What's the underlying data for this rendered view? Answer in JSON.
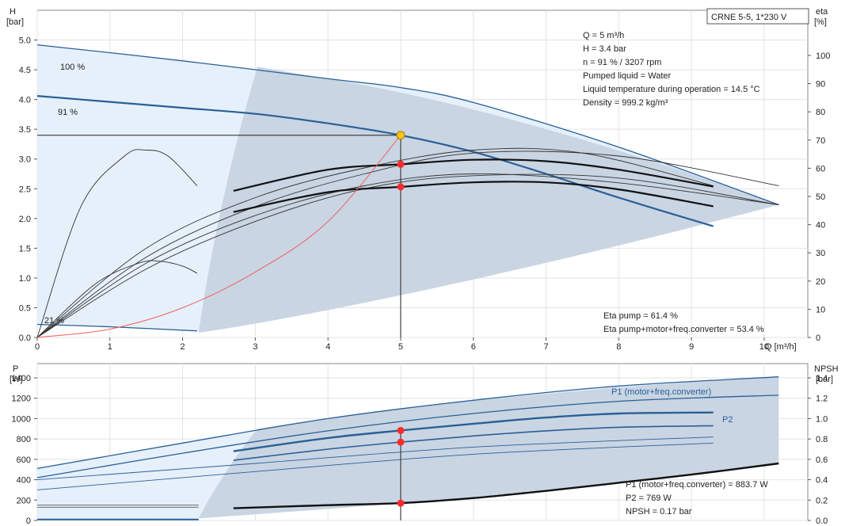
{
  "chart_data": [
    {
      "type": "line",
      "title": "",
      "model_box": "CRNE 5-5, 1*230 V",
      "xlabel": "Q [m³/h]",
      "ylabel_left": [
        "H",
        "[bar]"
      ],
      "ylabel_right": [
        "eta",
        "[%]"
      ],
      "xlim": [
        0,
        10.6
      ],
      "ylim_left": [
        0,
        5.5
      ],
      "ylim_right": [
        0,
        116
      ],
      "x_ticks": [
        0,
        1,
        2,
        3,
        4,
        5,
        6,
        7,
        8,
        9,
        10
      ],
      "y_ticks_left": [
        0.0,
        0.5,
        1.0,
        1.5,
        2.0,
        2.5,
        3.0,
        3.5,
        4.0,
        4.5,
        5.0
      ],
      "y_ticks_right": [
        0,
        10,
        20,
        30,
        40,
        50,
        60,
        70,
        80,
        90,
        100
      ],
      "speed_labels": [
        "100 %",
        "91 %",
        "21 %"
      ],
      "info_lines": [
        "Q = 5 m³/h",
        "H = 3.4 bar",
        "n = 91 % / 3207 rpm",
        "Pumped liquid = Water",
        "Liquid temperature during operation = 14.5 °C",
        "Density = 999.2 kg/m³"
      ],
      "eta_lines": [
        "Eta pump = 61.4 %",
        "Eta pump+motor+freq.converter = 53.4 %"
      ],
      "series": [
        {
          "name": "100 %",
          "x": [
            0,
            2,
            4,
            5,
            6,
            8,
            10.2
          ],
          "y": [
            4.92,
            4.65,
            4.35,
            4.2,
            3.95,
            3.2,
            2.23
          ]
        },
        {
          "name": "91 %",
          "x": [
            0,
            1,
            2,
            3,
            4,
            5,
            6,
            7,
            8,
            9.3
          ],
          "y": [
            4.06,
            3.96,
            3.86,
            3.76,
            3.6,
            3.4,
            3.12,
            2.75,
            2.35,
            1.87
          ]
        },
        {
          "name": "21 %",
          "x": [
            0,
            1,
            2.2
          ],
          "y": [
            0.22,
            0.18,
            0.11
          ]
        },
        {
          "name": "eta_pump",
          "x": [
            2.7,
            4,
            5,
            6,
            7,
            8,
            9.3
          ],
          "y": [
            52,
            59.5,
            61.4,
            63,
            62.5,
            59.5,
            53.5
          ]
        },
        {
          "name": "eta_total",
          "x": [
            2.7,
            4,
            5,
            6,
            7,
            8,
            9.3
          ],
          "y": [
            44.5,
            51.5,
            53.4,
            55,
            55,
            52.5,
            46.5
          ]
        },
        {
          "name": "system_curve",
          "x": [
            0,
            1,
            2,
            3,
            4,
            5
          ],
          "y": [
            0,
            0.14,
            0.5,
            1.1,
            1.95,
            3.4
          ]
        }
      ],
      "operating_point": {
        "x": 5,
        "y": 3.4
      },
      "eta_points": [
        61.4,
        53.4
      ]
    },
    {
      "type": "line",
      "ylabel_left": [
        "P",
        "[W]"
      ],
      "ylabel_right": [
        "NPSH",
        "[bar]"
      ],
      "xlim": [
        0,
        10.6
      ],
      "ylim_left": [
        0,
        1540
      ],
      "ylim_right": [
        0,
        1.54
      ],
      "y_ticks_left": [
        0,
        200,
        400,
        600,
        800,
        1000,
        1200,
        1400
      ],
      "y_ticks_right": [
        "0.0",
        "0.2",
        "0.4",
        "0.6",
        "0.8",
        "1.0",
        "1.2",
        "1.4"
      ],
      "curve_labels": [
        "P1 (motor+freq.converter)",
        "P2"
      ],
      "info_lines": [
        "P1 (motor+freq.converter) = 883.7 W",
        "P2 = 769 W",
        "NPSH = 0.17 bar"
      ],
      "series": [
        {
          "name": "P1 (motor+freq.converter)",
          "x": [
            0,
            2,
            4,
            6,
            8,
            10.2
          ],
          "y": [
            510,
            760,
            1000,
            1180,
            1320,
            1410
          ]
        },
        {
          "name": "P2",
          "x": [
            0,
            2,
            4,
            6,
            8,
            10.2
          ],
          "y": [
            420,
            660,
            880,
            1050,
            1170,
            1230
          ]
        },
        {
          "name": "P1_91",
          "x": [
            2.7,
            4,
            5,
            6,
            7,
            8,
            9.3
          ],
          "y": [
            680,
            810,
            883.7,
            950,
            1010,
            1050,
            1060
          ]
        },
        {
          "name": "P2_91",
          "x": [
            2.7,
            4,
            5,
            6,
            7,
            8,
            9.3
          ],
          "y": [
            590,
            700,
            769,
            830,
            880,
            915,
            930
          ]
        },
        {
          "name": "NPSH",
          "x": [
            2.7,
            4,
            5,
            6,
            7,
            8,
            9,
            10.2
          ],
          "y": [
            0.12,
            0.15,
            0.17,
            0.22,
            0.29,
            0.37,
            0.45,
            0.56
          ]
        }
      ],
      "points": [
        883.7,
        769,
        0.17
      ]
    }
  ]
}
